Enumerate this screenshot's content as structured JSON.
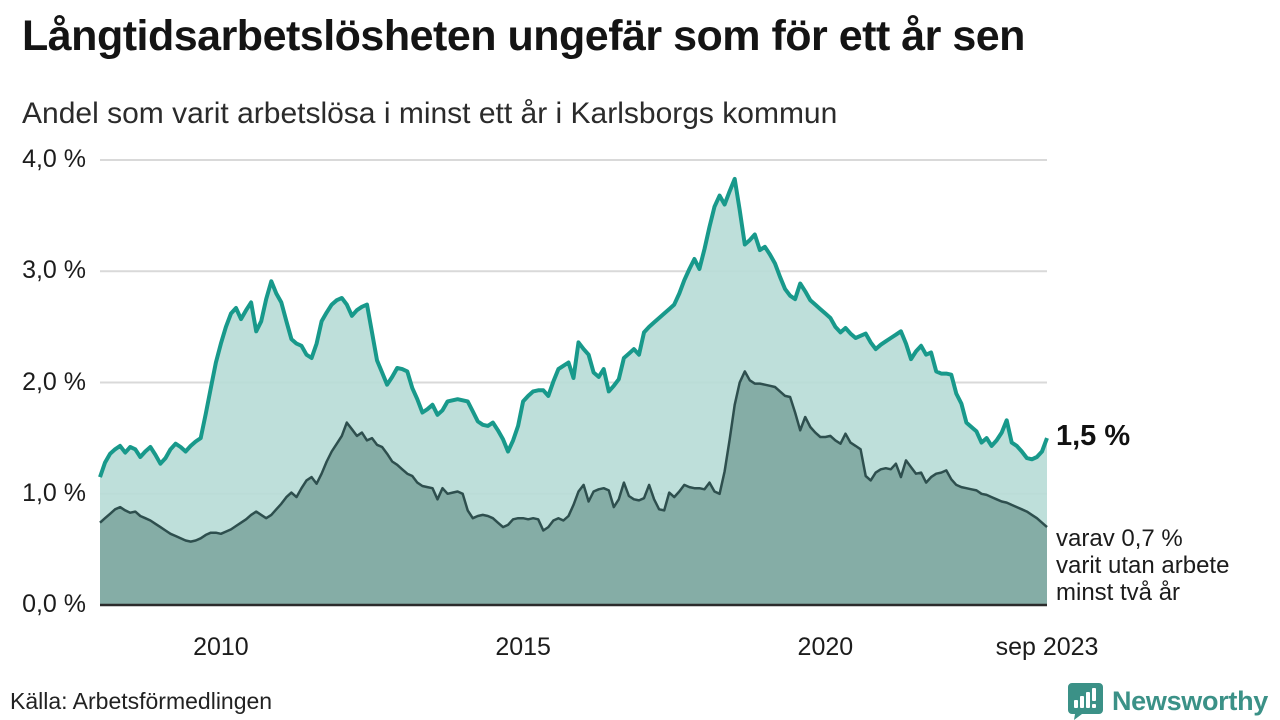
{
  "header": {
    "title": "Långtidsarbetslösheten ungefär som för ett år sen",
    "subtitle": "Andel som varit arbetslösa i minst ett år i Karlsborgs kommun"
  },
  "chart_data": {
    "type": "area",
    "frequency": "monthly",
    "x_start": "2008-01",
    "x_end": "2023-09",
    "unit": "%",
    "grid": true,
    "y_axis": {
      "max": 4,
      "tick_values": [
        0,
        1,
        2,
        3,
        4
      ],
      "tick_labels": [
        "0,0 %",
        "1,0 %",
        "2,0 %",
        "3,0 %",
        "4,0 %"
      ]
    },
    "x_ticks": [
      {
        "label": "2010",
        "month_index": 24
      },
      {
        "label": "2015",
        "month_index": 84
      },
      {
        "label": "2020",
        "month_index": 144
      },
      {
        "label": "sep 2023",
        "month_index": 188
      }
    ],
    "series": [
      {
        "name": "Arbetslösa minst ett år",
        "line_color": "#18998b",
        "fill_color": "#b9dcd7",
        "values": [
          1.15,
          1.28,
          1.36,
          1.4,
          1.43,
          1.37,
          1.42,
          1.4,
          1.33,
          1.38,
          1.42,
          1.35,
          1.27,
          1.32,
          1.4,
          1.45,
          1.42,
          1.38,
          1.43,
          1.47,
          1.5,
          1.72,
          1.95,
          2.18,
          2.35,
          2.5,
          2.62,
          2.67,
          2.57,
          2.65,
          2.72,
          2.46,
          2.55,
          2.75,
          2.91,
          2.8,
          2.72,
          2.55,
          2.39,
          2.35,
          2.33,
          2.25,
          2.22,
          2.35,
          2.55,
          2.63,
          2.7,
          2.74,
          2.76,
          2.7,
          2.6,
          2.65,
          2.68,
          2.7,
          2.45,
          2.2,
          2.09,
          1.98,
          2.05,
          2.13,
          2.12,
          2.1,
          1.95,
          1.85,
          1.73,
          1.76,
          1.8,
          1.71,
          1.75,
          1.83,
          1.84,
          1.85,
          1.84,
          1.83,
          1.74,
          1.65,
          1.62,
          1.61,
          1.64,
          1.57,
          1.49,
          1.38,
          1.48,
          1.61,
          1.83,
          1.88,
          1.92,
          1.93,
          1.93,
          1.88,
          2.01,
          2.12,
          2.15,
          2.18,
          2.04,
          2.36,
          2.3,
          2.25,
          2.09,
          2.05,
          2.12,
          1.92,
          1.97,
          2.03,
          2.22,
          2.26,
          2.3,
          2.25,
          2.45,
          2.5,
          2.54,
          2.58,
          2.62,
          2.66,
          2.7,
          2.8,
          2.92,
          3.02,
          3.11,
          3.02,
          3.2,
          3.4,
          3.58,
          3.68,
          3.6,
          3.72,
          3.83,
          3.55,
          3.24,
          3.28,
          3.33,
          3.19,
          3.22,
          3.15,
          3.07,
          2.95,
          2.84,
          2.78,
          2.75,
          2.89,
          2.82,
          2.74,
          2.7,
          2.66,
          2.62,
          2.58,
          2.5,
          2.45,
          2.49,
          2.44,
          2.4,
          2.42,
          2.44,
          2.36,
          2.3,
          2.34,
          2.37,
          2.4,
          2.43,
          2.46,
          2.35,
          2.21,
          2.28,
          2.33,
          2.25,
          2.27,
          2.1,
          2.08,
          2.08,
          2.07,
          1.9,
          1.81,
          1.64,
          1.6,
          1.56,
          1.46,
          1.5,
          1.43,
          1.48,
          1.55,
          1.66,
          1.46,
          1.43,
          1.38,
          1.32,
          1.31,
          1.33,
          1.38,
          1.5
        ]
      },
      {
        "name": "Arbetslösa minst två år",
        "line_color": "#2e4f4e",
        "fill_color": "#80a8a2",
        "values": [
          0.74,
          0.78,
          0.82,
          0.86,
          0.88,
          0.85,
          0.83,
          0.84,
          0.8,
          0.78,
          0.76,
          0.73,
          0.7,
          0.67,
          0.64,
          0.62,
          0.6,
          0.58,
          0.57,
          0.58,
          0.6,
          0.63,
          0.65,
          0.65,
          0.64,
          0.66,
          0.68,
          0.71,
          0.74,
          0.77,
          0.81,
          0.84,
          0.81,
          0.78,
          0.81,
          0.86,
          0.91,
          0.97,
          1.01,
          0.97,
          1.05,
          1.12,
          1.15,
          1.09,
          1.18,
          1.29,
          1.38,
          1.45,
          1.52,
          1.64,
          1.58,
          1.52,
          1.55,
          1.48,
          1.5,
          1.44,
          1.42,
          1.36,
          1.29,
          1.26,
          1.22,
          1.18,
          1.16,
          1.1,
          1.07,
          1.06,
          1.05,
          0.95,
          1.05,
          1.0,
          1.01,
          1.02,
          1.0,
          0.85,
          0.78,
          0.8,
          0.81,
          0.8,
          0.78,
          0.74,
          0.7,
          0.72,
          0.77,
          0.78,
          0.78,
          0.77,
          0.78,
          0.77,
          0.67,
          0.7,
          0.76,
          0.78,
          0.76,
          0.8,
          0.9,
          1.02,
          1.08,
          0.93,
          1.02,
          1.04,
          1.05,
          1.03,
          0.88,
          0.95,
          1.1,
          0.98,
          0.95,
          0.94,
          0.96,
          1.08,
          0.95,
          0.86,
          0.85,
          1.01,
          0.97,
          1.02,
          1.08,
          1.06,
          1.05,
          1.05,
          1.04,
          1.1,
          1.02,
          1.0,
          1.2,
          1.49,
          1.8,
          2.0,
          2.1,
          2.02,
          1.99,
          1.99,
          1.98,
          1.97,
          1.96,
          1.92,
          1.88,
          1.87,
          1.73,
          1.57,
          1.69,
          1.6,
          1.55,
          1.51,
          1.51,
          1.52,
          1.48,
          1.45,
          1.54,
          1.46,
          1.43,
          1.4,
          1.16,
          1.12,
          1.19,
          1.22,
          1.23,
          1.22,
          1.27,
          1.15,
          1.3,
          1.24,
          1.18,
          1.19,
          1.1,
          1.15,
          1.18,
          1.19,
          1.21,
          1.13,
          1.08,
          1.06,
          1.05,
          1.04,
          1.03,
          1.0,
          0.99,
          0.97,
          0.95,
          0.93,
          0.92,
          0.9,
          0.88,
          0.86,
          0.84,
          0.81,
          0.78,
          0.74,
          0.7
        ]
      }
    ],
    "annotations": {
      "end_value_label": "1,5 %",
      "sub_label_lines": [
        "varav 0,7 %",
        "varit utan arbete",
        "minst två år"
      ]
    },
    "colors": {
      "gridline": "#d9d9d9",
      "zero_line": "#2b2b2b"
    }
  },
  "footer": {
    "source": "Källa: Arbetsförmedlingen",
    "logo_text": "Newsworthy",
    "logo_color": "#3b9187"
  }
}
